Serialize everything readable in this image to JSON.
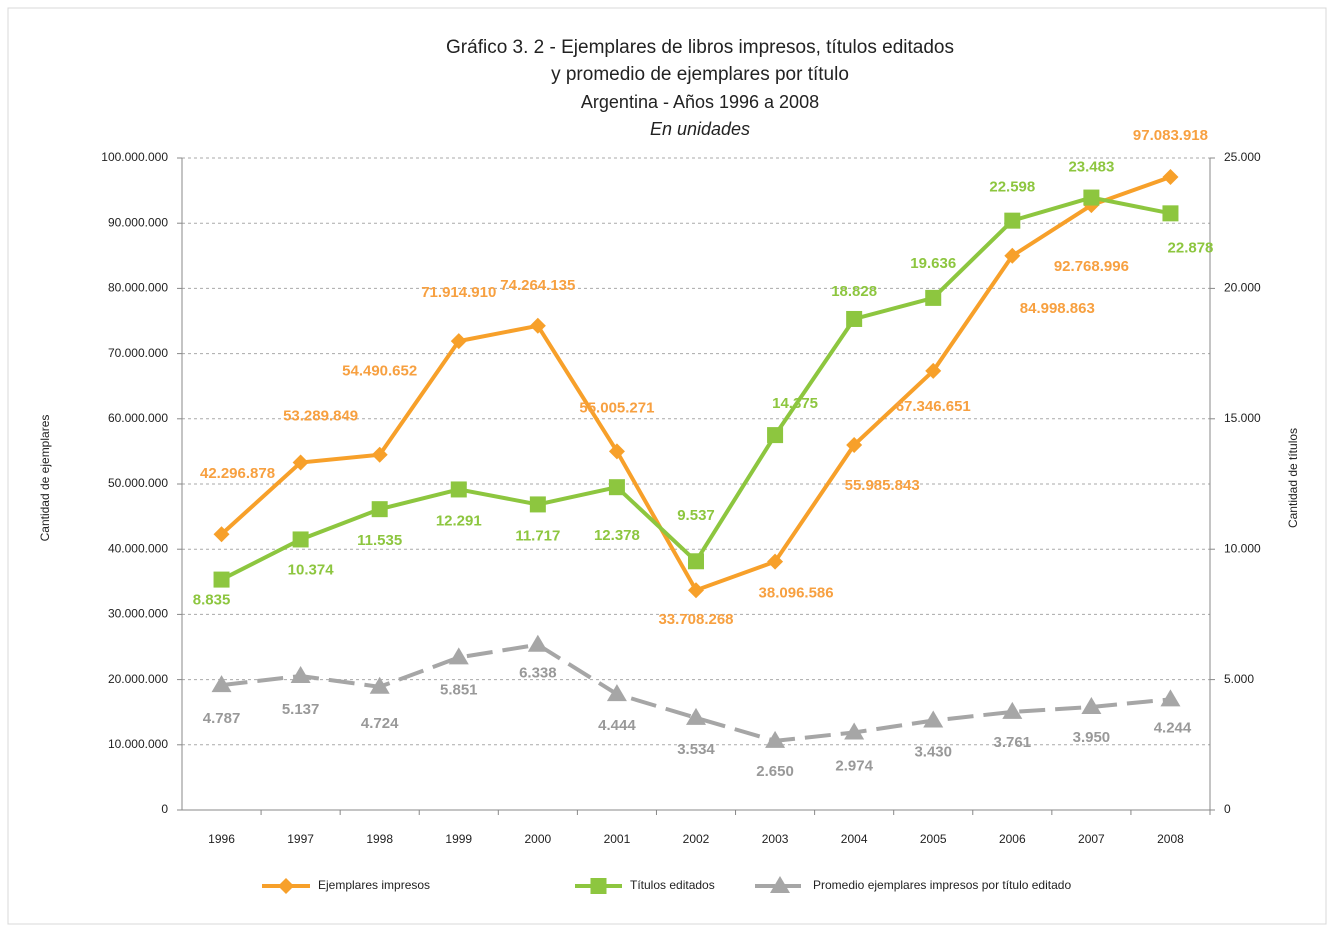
{
  "chart_data": {
    "type": "line",
    "title": [
      "Gráfico 3. 2 - Ejemplares de libros impresos, títulos editados",
      "y promedio de ejemplares por título"
    ],
    "subtitle": "Argentina - Años 1996 a 2008",
    "note": "En unidades",
    "y_label": "Cantidad de ejemplares",
    "y2_label": "Cantidad de títulos",
    "categories": [
      "1996",
      "1997",
      "1998",
      "1999",
      "2000",
      "2001",
      "2002",
      "2003",
      "2004",
      "2005",
      "2006",
      "2007",
      "2008"
    ],
    "ylim": [
      0,
      100000000
    ],
    "yticks": [
      0,
      {
        "value": 10000000,
        "label": "10.000.000"
      },
      {
        "value": 20000000,
        "label": "20.000.000"
      },
      {
        "value": 30000000,
        "label": "30.000.000"
      },
      {
        "value": 40000000,
        "label": "40.000.000"
      },
      {
        "value": 50000000,
        "label": "50.000.000"
      },
      {
        "value": 60000000,
        "label": "60.000.000"
      },
      {
        "value": 70000000,
        "label": "70.000.000"
      },
      {
        "value": 80000000,
        "label": "80.000.000"
      },
      {
        "value": 90000000,
        "label": "90.000.000"
      },
      {
        "value": 100000000,
        "label": "100.000.000"
      }
    ],
    "y2lim": [
      0,
      25000
    ],
    "y2ticks": [
      0,
      {
        "value": 5000,
        "label": "5.000"
      },
      {
        "value": 10000,
        "label": "10.000"
      },
      {
        "value": 15000,
        "label": "15.000"
      },
      {
        "value": 20000,
        "label": "20.000"
      },
      {
        "value": 25000,
        "label": "25.000"
      }
    ],
    "grid": true,
    "legend": "bottom",
    "series": [
      {
        "name": "Ejemplares impresos",
        "color": "#f7a02a",
        "marker": "diamond",
        "values": [
          42296878,
          53289849,
          54490652,
          71914910,
          74264135,
          55005271,
          33708268,
          38096586,
          55985843,
          67346651,
          84998863,
          92768996,
          97083918
        ],
        "value_labels": [
          "42.296.878",
          "53.289.849",
          "54.490.652",
          "71.914.910",
          "74.264.135",
          "55.005.271",
          "33.708.268",
          "38.096.586",
          "55.985.843",
          "67.346.651",
          "84.998.863",
          "92.768.996",
          "97.083.918"
        ]
      },
      {
        "name": "Títulos editados",
        "color": "#8dc63f",
        "marker": "square",
        "axis": "y2",
        "values": [
          8835,
          10374,
          11535,
          12291,
          11717,
          12378,
          9537,
          14375,
          18828,
          19636,
          22598,
          23483,
          22878
        ],
        "value_labels": [
          "8.835",
          "10.374",
          "11.535",
          "12.291",
          "11.717",
          "12.378",
          "9.537",
          "14.375",
          "18.828",
          "19.636",
          "22.598",
          "23.483",
          "22.878"
        ]
      },
      {
        "name": "Promedio ejemplares impresos por título editado",
        "color": "#a6a6a6",
        "marker": "triangle",
        "dashed": true,
        "axis": "y2",
        "values": [
          4787,
          5137,
          4724,
          5851,
          6338,
          4444,
          3534,
          2650,
          2974,
          3430,
          3761,
          3950,
          4244
        ],
        "value_labels": [
          "4.787",
          "5.137",
          "4.724",
          "5.851",
          "6.338",
          "4.444",
          "3.534",
          "2.650",
          "2.974",
          "3.430",
          "3.761",
          "3.950",
          "4.244"
        ]
      }
    ]
  }
}
